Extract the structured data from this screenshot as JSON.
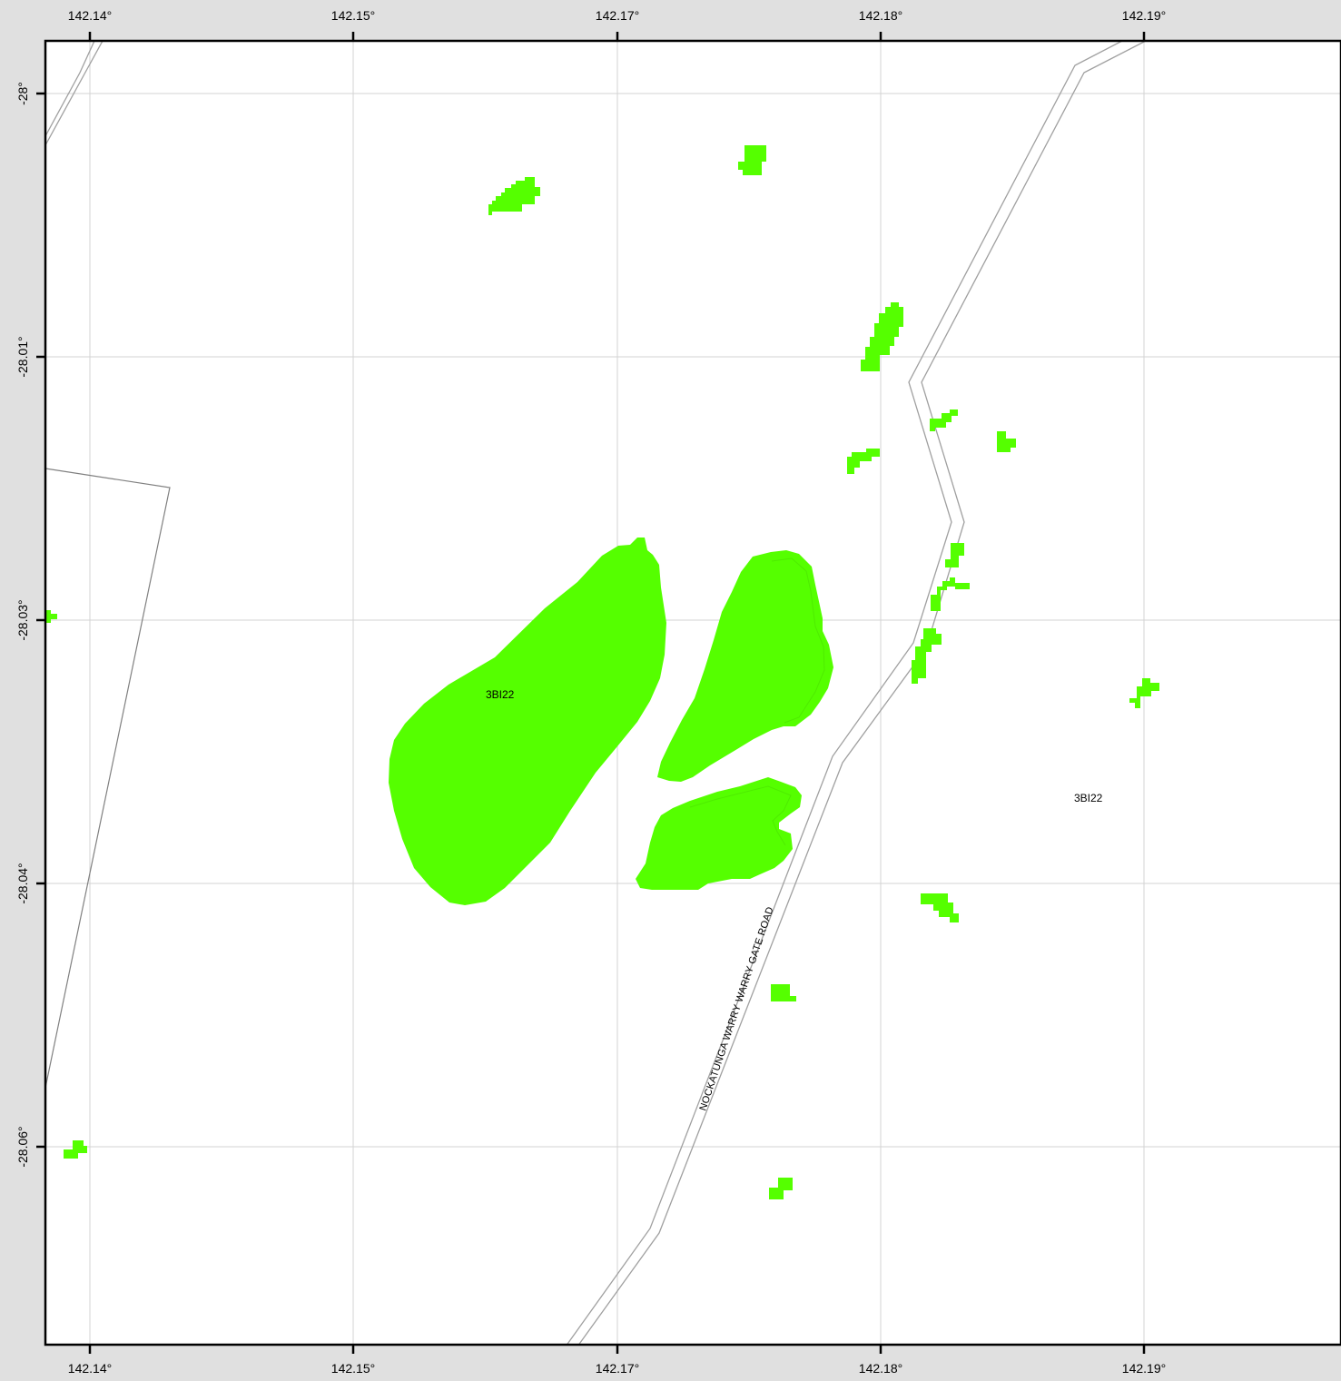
{
  "map": {
    "x_ticks": [
      "142.14°",
      "142.15°",
      "142.17°",
      "142.18°",
      "142.19°"
    ],
    "y_ticks": [
      "-28°",
      "-28.01°",
      "-28.03°",
      "-28.04°",
      "-28.06°"
    ],
    "labels": {
      "zone_label_main": "3BI22",
      "zone_label_east": "3BI22",
      "road_name": "NOCKATUNGA WARRY WARRY GATE ROAD"
    },
    "colors": {
      "background": "#e0e0e0",
      "panel": "#ffffff",
      "grid": "#d3d3d3",
      "vegetation": "#55ff00",
      "road": "#a0a0a0",
      "boundary": "#808080",
      "frame": "#000000"
    }
  }
}
